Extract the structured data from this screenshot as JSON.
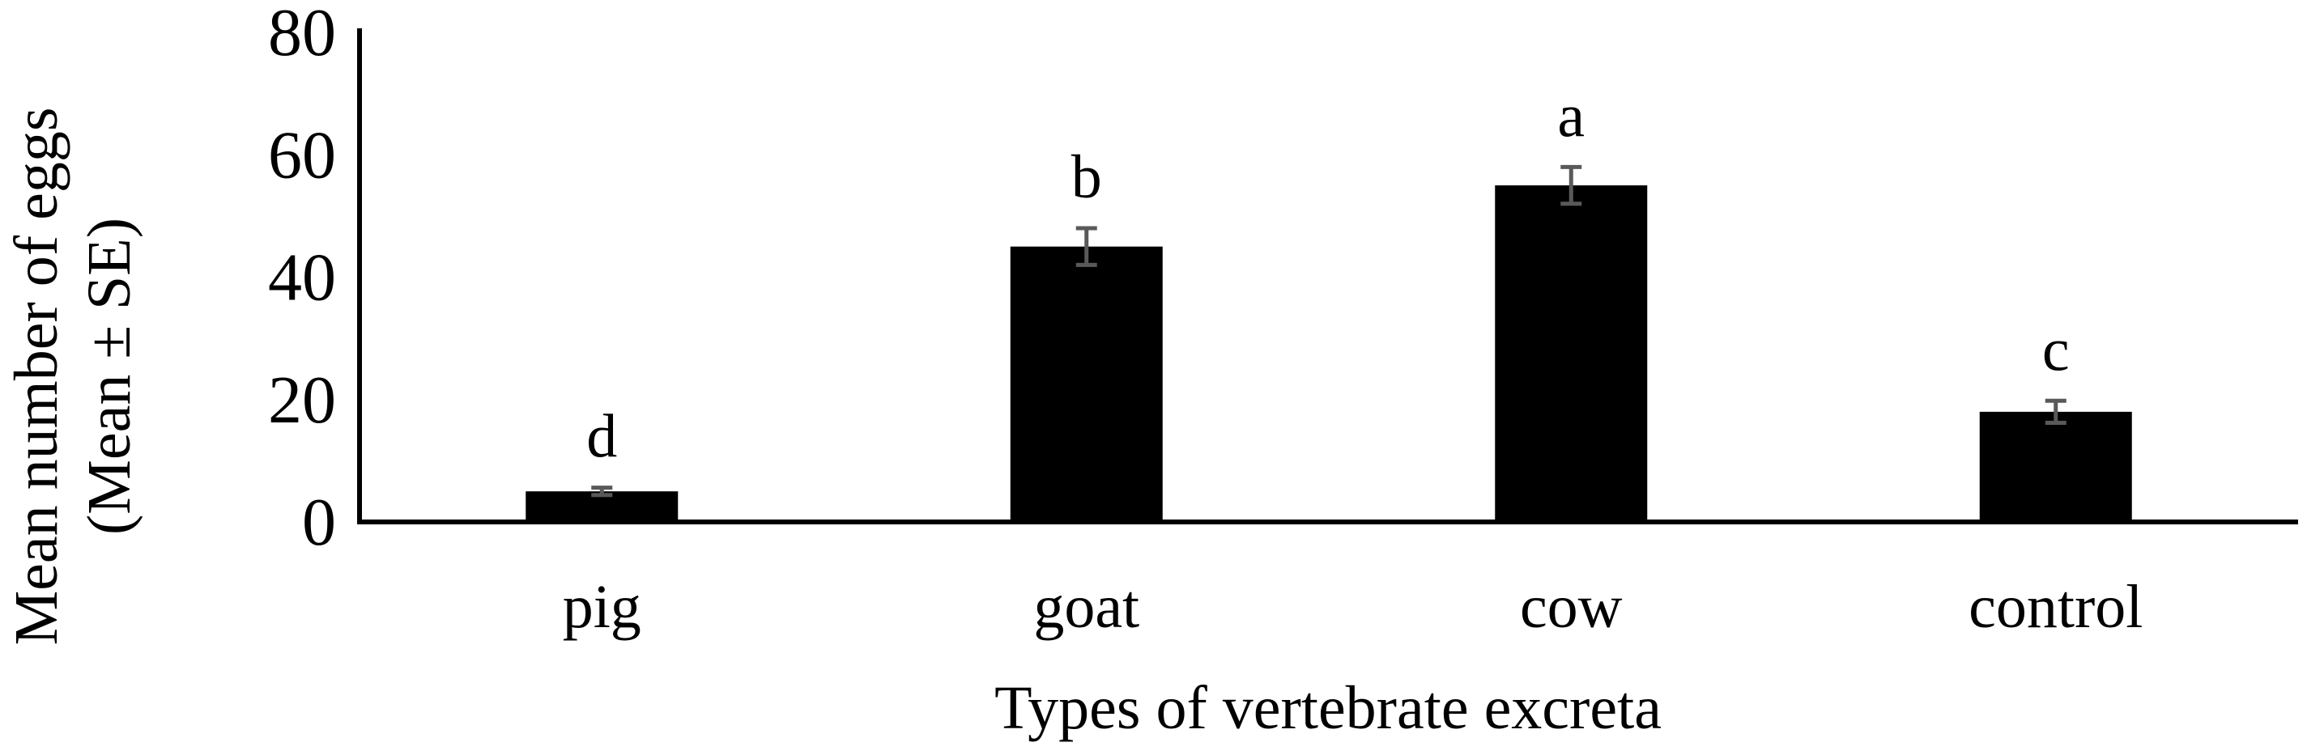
{
  "chart_data": {
    "type": "bar",
    "title": "",
    "categories": [
      "pig",
      "goat",
      "cow",
      "control"
    ],
    "series": [
      {
        "values": [
          5,
          45,
          55,
          18
        ],
        "error": [
          0.6,
          3.0,
          3.0,
          1.8
        ],
        "significance": [
          "d",
          "b",
          "a",
          "c"
        ]
      }
    ],
    "xlabel": "Types of vertebrate excreta",
    "ylabel": [
      "Mean number of eggs",
      "(Mean ± SE)"
    ],
    "ylim": [
      0,
      80
    ],
    "yticks": [
      0,
      20,
      40,
      60,
      80
    ],
    "grid": false,
    "legend": "none",
    "colors": {
      "bar": "#000000",
      "error_bar": "#595959",
      "axis": "#000000"
    }
  }
}
